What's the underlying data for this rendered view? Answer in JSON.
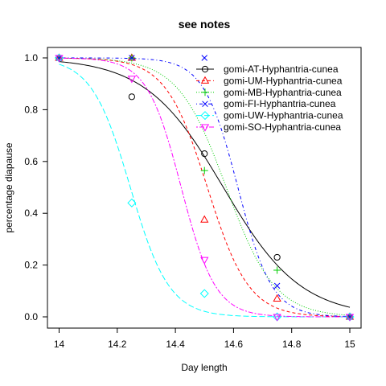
{
  "chart_data": {
    "type": "scatter",
    "title": "see notes",
    "xlabel": "Day length",
    "ylabel": "percentage diapause",
    "xlim": [
      14,
      15
    ],
    "ylim": [
      0,
      1
    ],
    "x_ticks": [
      "14",
      "14.2",
      "14.4",
      "14.6",
      "14.8",
      "15"
    ],
    "y_ticks": [
      "0.0",
      "0.2",
      "0.4",
      "0.6",
      "0.8",
      "1.0"
    ],
    "legend_position": "top-right",
    "series": [
      {
        "name": "gomi-AT-Hyphantria-cunea",
        "color": "#000000",
        "marker": "circle",
        "dash": "solid",
        "points": [
          [
            14,
            1.0
          ],
          [
            14.25,
            0.85
          ],
          [
            14.5,
            0.63
          ],
          [
            14.75,
            0.23
          ],
          [
            15,
            0.0
          ]
        ],
        "fit": {
          "midpoint": 14.565,
          "slope": 7.5
        }
      },
      {
        "name": "gomi-UM-Hyphantria-cunea",
        "color": "#ff0000",
        "marker": "triangle",
        "dash": "dashed",
        "points": [
          [
            14,
            1.0
          ],
          [
            14.25,
            1.0
          ],
          [
            14.5,
            0.375
          ],
          [
            14.75,
            0.07
          ],
          [
            15,
            0.0
          ]
        ],
        "fit": {
          "midpoint": 14.51,
          "slope": 14
        }
      },
      {
        "name": "gomi-MB-Hyphantria-cunea",
        "color": "#00cd00",
        "marker": "plus",
        "dash": "dotted",
        "points": [
          [
            14,
            1.0
          ],
          [
            14.25,
            1.0
          ],
          [
            14.5,
            0.565
          ],
          [
            14.75,
            0.18
          ],
          [
            15,
            0.0
          ]
        ],
        "fit": {
          "midpoint": 14.575,
          "slope": 12
        }
      },
      {
        "name": "gomi-FI-Hyphantria-cunea",
        "color": "#0000ff",
        "marker": "cross",
        "dash": "dotdash",
        "points": [
          [
            14,
            1.0
          ],
          [
            14.25,
            1.0
          ],
          [
            14.5,
            1.0
          ],
          [
            14.75,
            0.12
          ],
          [
            15,
            0.0
          ]
        ],
        "fit": {
          "midpoint": 14.615,
          "slope": 17
        }
      },
      {
        "name": "gomi-UW-Hyphantria-cunea",
        "color": "#00ffff",
        "marker": "diamond",
        "dash": "longdash",
        "points": [
          [
            14,
            1.0
          ],
          [
            14.25,
            0.44
          ],
          [
            14.5,
            0.09
          ],
          [
            14.75,
            0.0
          ],
          [
            15,
            0.0
          ]
        ],
        "fit": {
          "midpoint": 14.245,
          "slope": 15
        }
      },
      {
        "name": "gomi-SO-Hyphantria-cunea",
        "color": "#ff00ff",
        "marker": "triangle-down",
        "dash": "twodash",
        "points": [
          [
            14,
            1.0
          ],
          [
            14.25,
            0.92
          ],
          [
            14.5,
            0.22
          ],
          [
            14.75,
            0.0
          ],
          [
            15,
            0.0
          ]
        ],
        "fit": {
          "midpoint": 14.42,
          "slope": 17
        }
      }
    ]
  }
}
